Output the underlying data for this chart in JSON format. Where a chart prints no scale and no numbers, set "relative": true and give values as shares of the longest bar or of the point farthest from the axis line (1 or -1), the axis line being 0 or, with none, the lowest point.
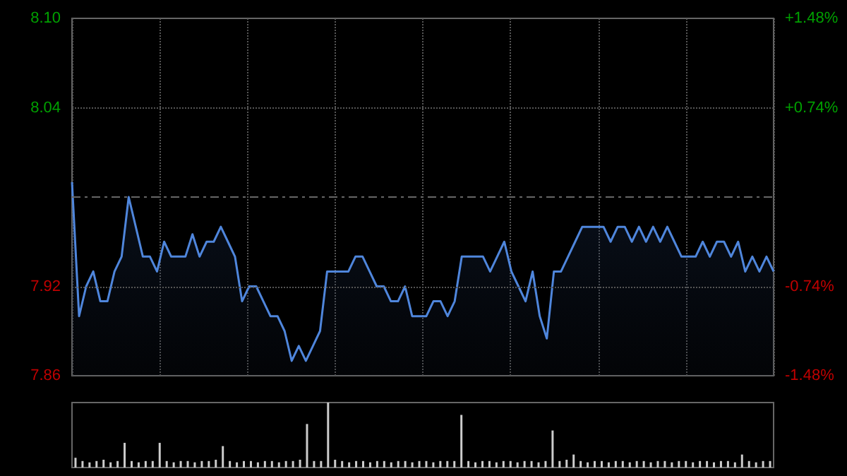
{
  "chart_data": [
    {
      "type": "area",
      "categories": [
        null,
        null,
        null,
        null,
        null,
        null,
        null,
        null,
        null,
        null,
        null,
        null,
        null,
        null,
        null,
        null,
        null,
        null,
        null,
        null,
        null,
        null,
        null,
        null,
        null,
        null,
        null,
        null,
        null,
        null,
        null,
        null,
        null,
        null,
        null,
        null,
        null,
        null,
        null,
        null,
        null,
        null,
        null,
        null,
        null,
        null,
        null,
        null,
        null,
        null,
        null,
        null,
        null,
        null,
        null,
        null,
        null,
        null,
        null,
        null,
        null,
        null,
        null,
        null,
        null,
        null,
        null,
        null,
        null,
        null,
        null,
        null,
        null,
        null,
        null,
        null,
        null,
        null,
        null,
        null,
        null,
        null,
        null,
        null,
        null,
        null,
        null,
        null,
        null,
        null,
        null,
        null,
        null,
        null,
        null,
        null,
        null,
        null,
        null,
        null
      ],
      "series": [
        {
          "color": "#4f86dc",
          "values": [
            7.99,
            7.9,
            7.92,
            7.93,
            7.91,
            7.91,
            7.93,
            7.94,
            7.98,
            7.96,
            7.94,
            7.94,
            7.93,
            7.95,
            7.94,
            7.94,
            7.94,
            7.955,
            7.94,
            7.95,
            7.95,
            7.96,
            7.95,
            7.94,
            7.91,
            7.92,
            7.92,
            7.91,
            7.9,
            7.9,
            7.89,
            7.87,
            7.88,
            7.87,
            7.88,
            7.89,
            7.93,
            7.93,
            7.93,
            7.93,
            7.94,
            7.94,
            7.93,
            7.92,
            7.92,
            7.91,
            7.91,
            7.92,
            7.9,
            7.9,
            7.9,
            7.91,
            7.91,
            7.9,
            7.91,
            7.94,
            7.94,
            7.94,
            7.94,
            7.93,
            7.94,
            7.95,
            7.93,
            7.92,
            7.91,
            7.93,
            7.9,
            7.885,
            7.93,
            7.93,
            7.94,
            7.95,
            7.96,
            7.96,
            7.96,
            7.96,
            7.95,
            7.96,
            7.96,
            7.95,
            7.96,
            7.95,
            7.96,
            7.95,
            7.96,
            7.95,
            7.94,
            7.94,
            7.94,
            7.95,
            7.94,
            7.95,
            7.95,
            7.94,
            7.95,
            7.93,
            7.94,
            7.93,
            7.94,
            7.93
          ]
        }
      ],
      "ylim": [
        7.86,
        8.1
      ],
      "yticks": [
        7.86,
        7.92,
        8.04,
        {
          "value": 8.1,
          "label": "8.10"
        }
      ],
      "y2lim": [
        -1.48,
        1.48
      ],
      "y2ticks": [
        {
          "value": -1.48,
          "label": "-1.48%"
        },
        {
          "value": -0.74,
          "label": "-0.74%"
        },
        {
          "value": 0.74,
          "label": "+0.74%"
        },
        {
          "value": 1.48,
          "label": "+1.48%"
        }
      ],
      "ref_lines": [
        {
          "axis": "y",
          "value": 7.98,
          "label": null,
          "color": "#666666",
          "line_style": "dashed"
        }
      ],
      "grid": true
    },
    {
      "type": "bar",
      "categories": [
        null,
        null,
        null,
        null,
        null,
        null,
        null,
        null,
        null,
        null,
        null,
        null,
        null,
        null,
        null,
        null,
        null,
        null,
        null,
        null,
        null,
        null,
        null,
        null,
        null,
        null,
        null,
        null,
        null,
        null,
        null,
        null,
        null,
        null,
        null,
        null,
        null,
        null,
        null,
        null,
        null,
        null,
        null,
        null,
        null,
        null,
        null,
        null,
        null,
        null,
        null,
        null,
        null,
        null,
        null,
        null,
        null,
        null,
        null,
        null,
        null,
        null,
        null,
        null,
        null,
        null,
        null,
        null,
        null,
        null,
        null,
        null,
        null,
        null,
        null,
        null,
        null,
        null,
        null,
        null,
        null,
        null,
        null,
        null,
        null,
        null,
        null,
        null,
        null,
        null,
        null,
        null,
        null,
        null,
        null,
        null,
        null,
        null,
        null,
        null
      ],
      "values": [
        0.15,
        0.1,
        0.08,
        0.1,
        0.12,
        0.08,
        0.1,
        0.38,
        0.1,
        0.08,
        0.1,
        0.1,
        0.38,
        0.1,
        0.08,
        0.1,
        0.1,
        0.08,
        0.1,
        0.1,
        0.12,
        0.33,
        0.1,
        0.08,
        0.1,
        0.1,
        0.08,
        0.1,
        0.1,
        0.08,
        0.1,
        0.1,
        0.12,
        0.67,
        0.1,
        0.1,
        1,
        0.12,
        0.1,
        0.08,
        0.1,
        0.1,
        0.08,
        0.1,
        0.1,
        0.08,
        0.1,
        0.1,
        0.08,
        0.1,
        0.1,
        0.08,
        0.1,
        0.1,
        0.1,
        0.81,
        0.1,
        0.08,
        0.1,
        0.1,
        0.08,
        0.1,
        0.1,
        0.08,
        0.1,
        0.1,
        0.08,
        0.1,
        0.57,
        0.1,
        0.12,
        0.2,
        0.1,
        0.08,
        0.1,
        0.1,
        0.08,
        0.1,
        0.1,
        0.08,
        0.1,
        0.1,
        0.08,
        0.1,
        0.1,
        0.08,
        0.1,
        0.1,
        0.08,
        0.1,
        0.1,
        0.08,
        0.1,
        0.1,
        0.08,
        0.2,
        0.1,
        0.08,
        0.1,
        0.1
      ],
      "color": "#cccccc",
      "relative": true,
      "grid": true
    }
  ]
}
